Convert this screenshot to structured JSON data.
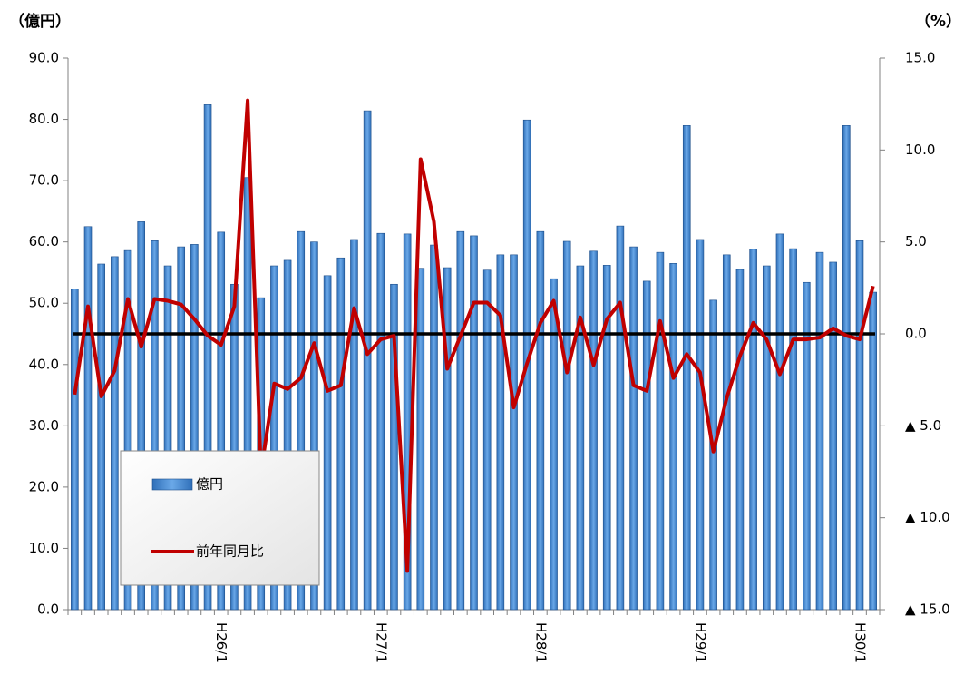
{
  "chart_data": {
    "type": "bar",
    "ylabel": "（億円）",
    "y2label": "（%）",
    "categories": [
      null,
      null,
      null,
      null,
      null,
      null,
      null,
      null,
      null,
      null,
      null,
      "H26/1",
      null,
      null,
      null,
      null,
      null,
      null,
      null,
      null,
      null,
      null,
      null,
      "H27/1",
      null,
      null,
      null,
      null,
      null,
      null,
      null,
      null,
      null,
      null,
      null,
      "H28/1",
      null,
      null,
      null,
      null,
      null,
      null,
      null,
      null,
      null,
      null,
      null,
      "H29/1",
      null,
      null,
      null,
      null,
      null,
      null,
      null,
      null,
      null,
      null,
      null,
      "H30/1",
      null
    ],
    "series": [
      {
        "name": "億円",
        "type": "bar",
        "color": "#4a8fd6",
        "values": [
          52.3,
          62.5,
          56.4,
          57.6,
          58.6,
          63.3,
          60.2,
          56.1,
          59.2,
          59.6,
          82.4,
          61.6,
          53.1,
          70.5,
          50.9,
          56.1,
          57.0,
          61.7,
          60.0,
          54.5,
          57.4,
          60.4,
          81.4,
          61.4,
          53.1,
          61.3,
          55.7,
          59.5,
          55.8,
          61.7,
          61.0,
          55.4,
          57.9,
          57.9,
          79.9,
          61.7,
          54.0,
          60.1,
          56.1,
          58.5,
          56.2,
          62.6,
          59.2,
          53.6,
          58.3,
          56.5,
          79.0,
          60.4,
          50.5,
          57.9,
          55.5,
          58.8,
          56.1,
          61.3,
          58.9,
          53.4,
          58.3,
          56.7,
          79.0,
          60.2,
          51.8
        ]
      },
      {
        "name": "前年同月比",
        "type": "line",
        "axis": "y2",
        "color": "#c00000",
        "values": [
          -3.3,
          1.5,
          -3.4,
          -2.0,
          1.9,
          -0.7,
          1.9,
          1.8,
          1.6,
          0.8,
          -0.1,
          -0.6,
          1.5,
          12.7,
          -7.5,
          -2.7,
          -3.0,
          -2.4,
          -0.5,
          -3.1,
          -2.8,
          1.4,
          -1.1,
          -0.3,
          -0.1,
          -12.9,
          9.5,
          6.1,
          -1.9,
          -0.1,
          1.7,
          1.7,
          1.0,
          -4.0,
          -1.6,
          0.6,
          1.8,
          -2.1,
          0.9,
          -1.7,
          0.8,
          1.7,
          -2.8,
          -3.1,
          0.7,
          -2.4,
          -1.1,
          -2.1,
          -6.4,
          -3.5,
          -1.2,
          0.6,
          -0.3,
          -2.2,
          -0.3,
          -0.3,
          -0.2,
          0.3,
          -0.1,
          -0.3,
          2.6
        ]
      }
    ],
    "ylim": [
      0,
      90
    ],
    "yticks": [
      {
        "value": 0,
        "label": "0.0"
      },
      {
        "value": 10,
        "label": "10.0"
      },
      {
        "value": 20,
        "label": "20.0"
      },
      {
        "value": 30,
        "label": "30.0"
      },
      {
        "value": 40,
        "label": "40.0"
      },
      {
        "value": 50,
        "label": "50.0"
      },
      {
        "value": 60,
        "label": "60.0"
      },
      {
        "value": 70,
        "label": "70.0"
      },
      {
        "value": 80,
        "label": "80.0"
      },
      {
        "value": 90,
        "label": "90.0"
      }
    ],
    "y2lim": [
      -15,
      15
    ],
    "y2ticks": [
      {
        "value": -15,
        "label": "▲ 15.0"
      },
      {
        "value": -10,
        "label": "▲ 10.0"
      },
      {
        "value": -5,
        "label": "▲ 5.0"
      },
      {
        "value": 0,
        "label": "0.0"
      },
      {
        "value": 5,
        "label": "5.0"
      },
      {
        "value": 10,
        "label": "10.0"
      },
      {
        "value": 15,
        "label": "15.0"
      }
    ]
  }
}
